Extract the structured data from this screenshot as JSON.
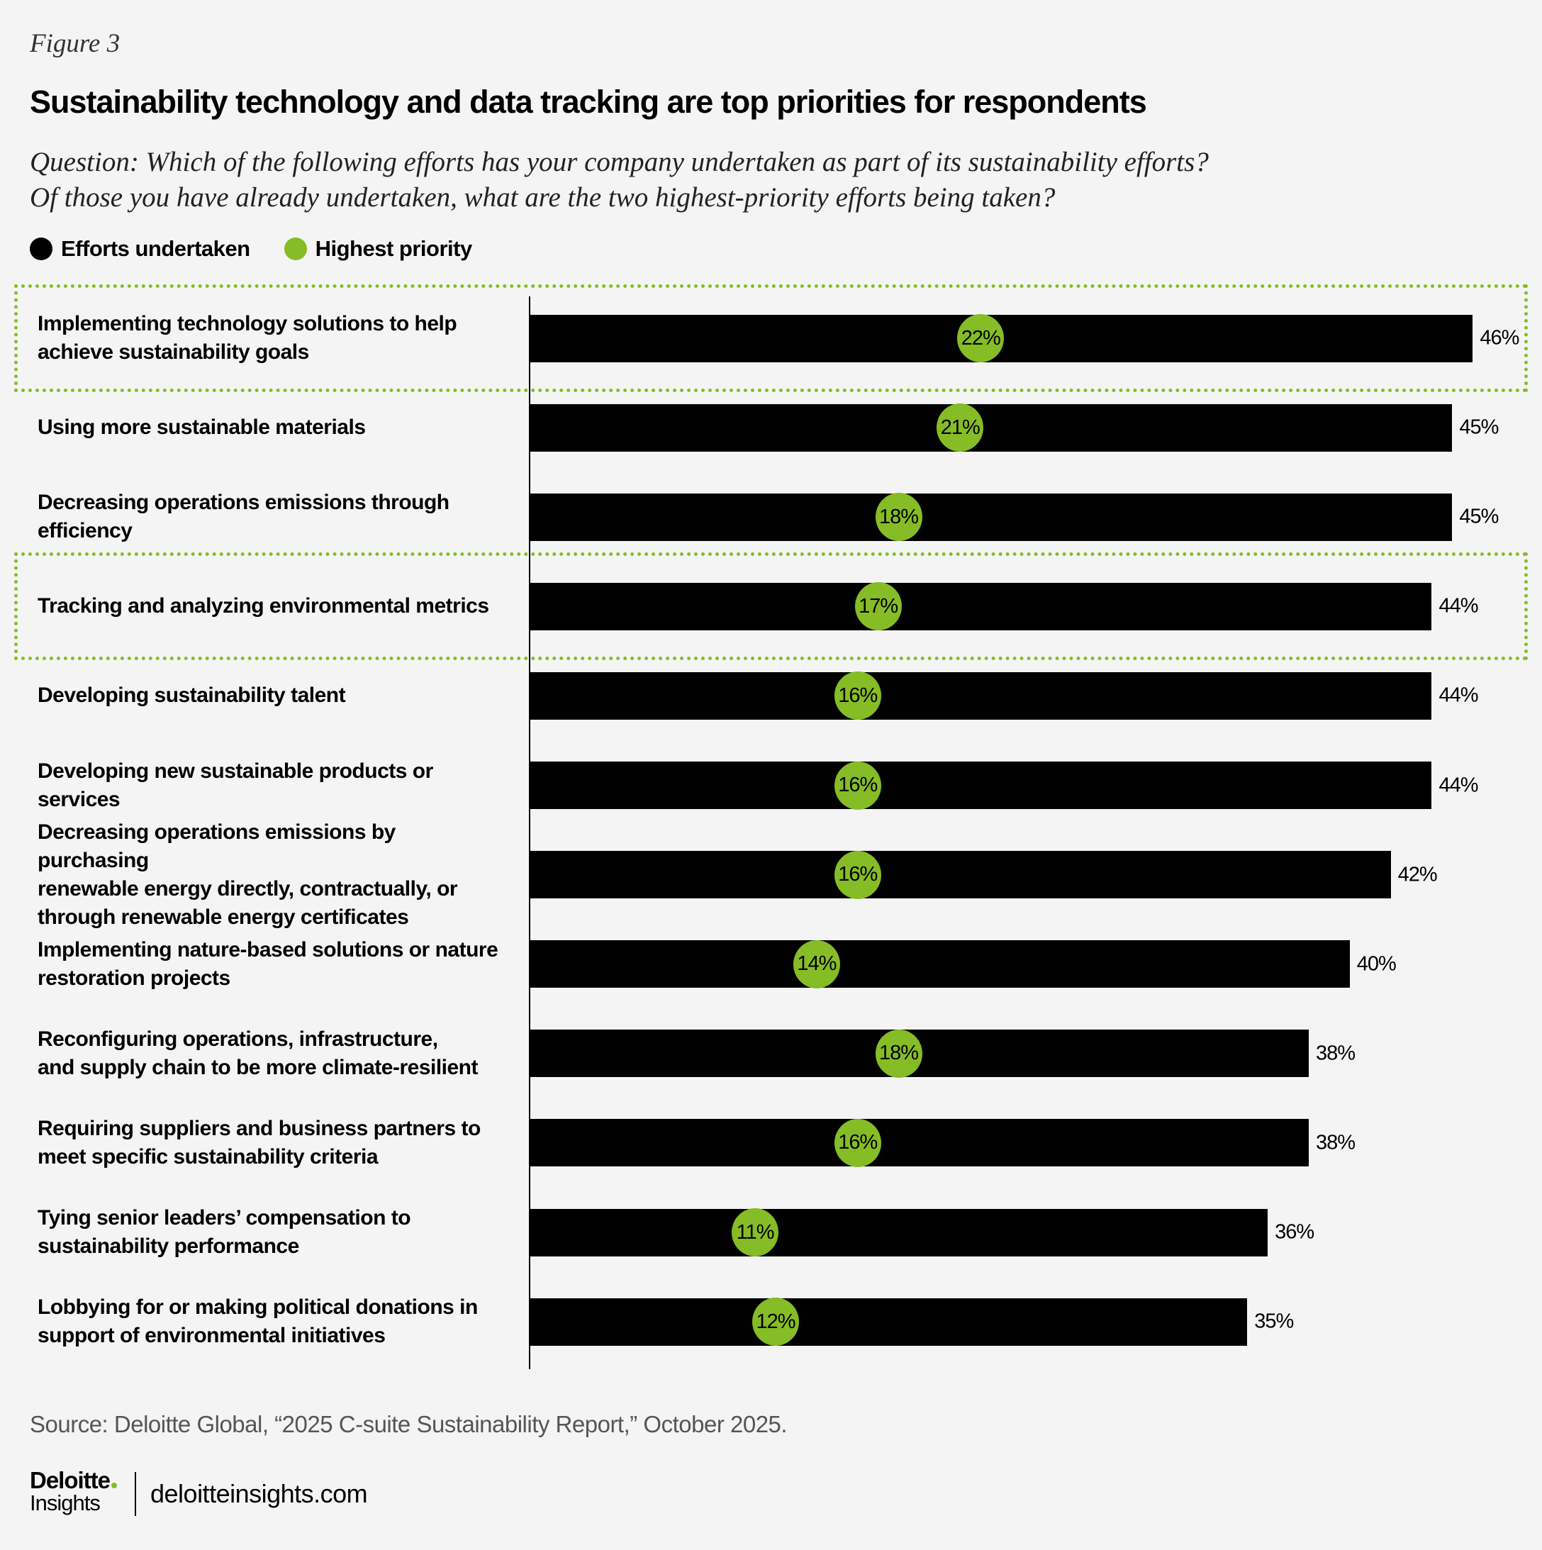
{
  "figure_label": "Figure 3",
  "chart_data": {
    "type": "bar",
    "orientation": "horizontal",
    "title": "Sustainability technology and data tracking are top priorities for respondents",
    "subtitle": [
      "Question: Which of the following efforts has your company undertaken as part of its sustainability efforts?",
      "Of those you have already undertaken, what are the two highest-priority efforts being taken?"
    ],
    "legend": [
      {
        "name": "Efforts undertaken",
        "color": "#000000"
      },
      {
        "name": "Highest priority",
        "color": "#86bc25"
      }
    ],
    "legend_placement": "top-left",
    "unit": "%",
    "xlim": [
      0,
      46
    ],
    "grid": false,
    "categories": [
      "Implementing technology solutions to help achieve sustainability goals",
      "Using more sustainable materials",
      "Decreasing operations emissions through efficiency",
      "Tracking and analyzing environmental metrics",
      "Developing sustainability talent",
      "Developing new sustainable products or services",
      "Decreasing operations emissions by purchasing renewable energy directly, contractually, or through renewable energy certificates",
      "Implementing nature-based solutions or nature restoration projects",
      "Reconfiguring operations, infrastructure, and supply chain to be more climate-resilient",
      "Requiring suppliers and business partners to meet specific sustainability criteria",
      "Tying senior leaders’ compensation to sustainability performance",
      "Lobbying for or making political donations in support of environmental initiatives"
    ],
    "label_lines": [
      [
        "Implementing technology solutions to help",
        "achieve sustainability goals"
      ],
      [
        "Using more sustainable materials"
      ],
      [
        "Decreasing operations emissions through",
        "efficiency"
      ],
      [
        "Tracking and analyzing environmental metrics"
      ],
      [
        "Developing sustainability talent"
      ],
      [
        "Developing new sustainable products or services"
      ],
      [
        "Decreasing operations emissions by purchasing",
        "renewable energy directly, contractually, or",
        "through renewable energy certificates"
      ],
      [
        "Implementing nature-based solutions or nature",
        "restoration projects"
      ],
      [
        "Reconfiguring operations, infrastructure,",
        "and supply chain to be more climate-resilient"
      ],
      [
        "Requiring suppliers and business partners to",
        "meet specific sustainability criteria"
      ],
      [
        "Tying senior leaders’ compensation to",
        "sustainability performance"
      ],
      [
        "Lobbying for or making political donations in",
        "support of environmental initiatives"
      ]
    ],
    "series": [
      {
        "name": "Efforts undertaken",
        "values": [
          46,
          45,
          45,
          44,
          44,
          44,
          42,
          40,
          38,
          38,
          36,
          35
        ]
      },
      {
        "name": "Highest priority",
        "values": [
          22,
          21,
          18,
          17,
          16,
          16,
          16,
          14,
          18,
          16,
          11,
          12
        ]
      }
    ],
    "highlighted_categories": [
      0,
      3
    ],
    "highlight_color": "#86bc25"
  },
  "source": "Source: Deloitte Global, “2025 C-suite Sustainability Report,” October 2025.",
  "footer": {
    "logo_text": "Deloitte. Insights",
    "site": "deloitteinsights.com"
  }
}
